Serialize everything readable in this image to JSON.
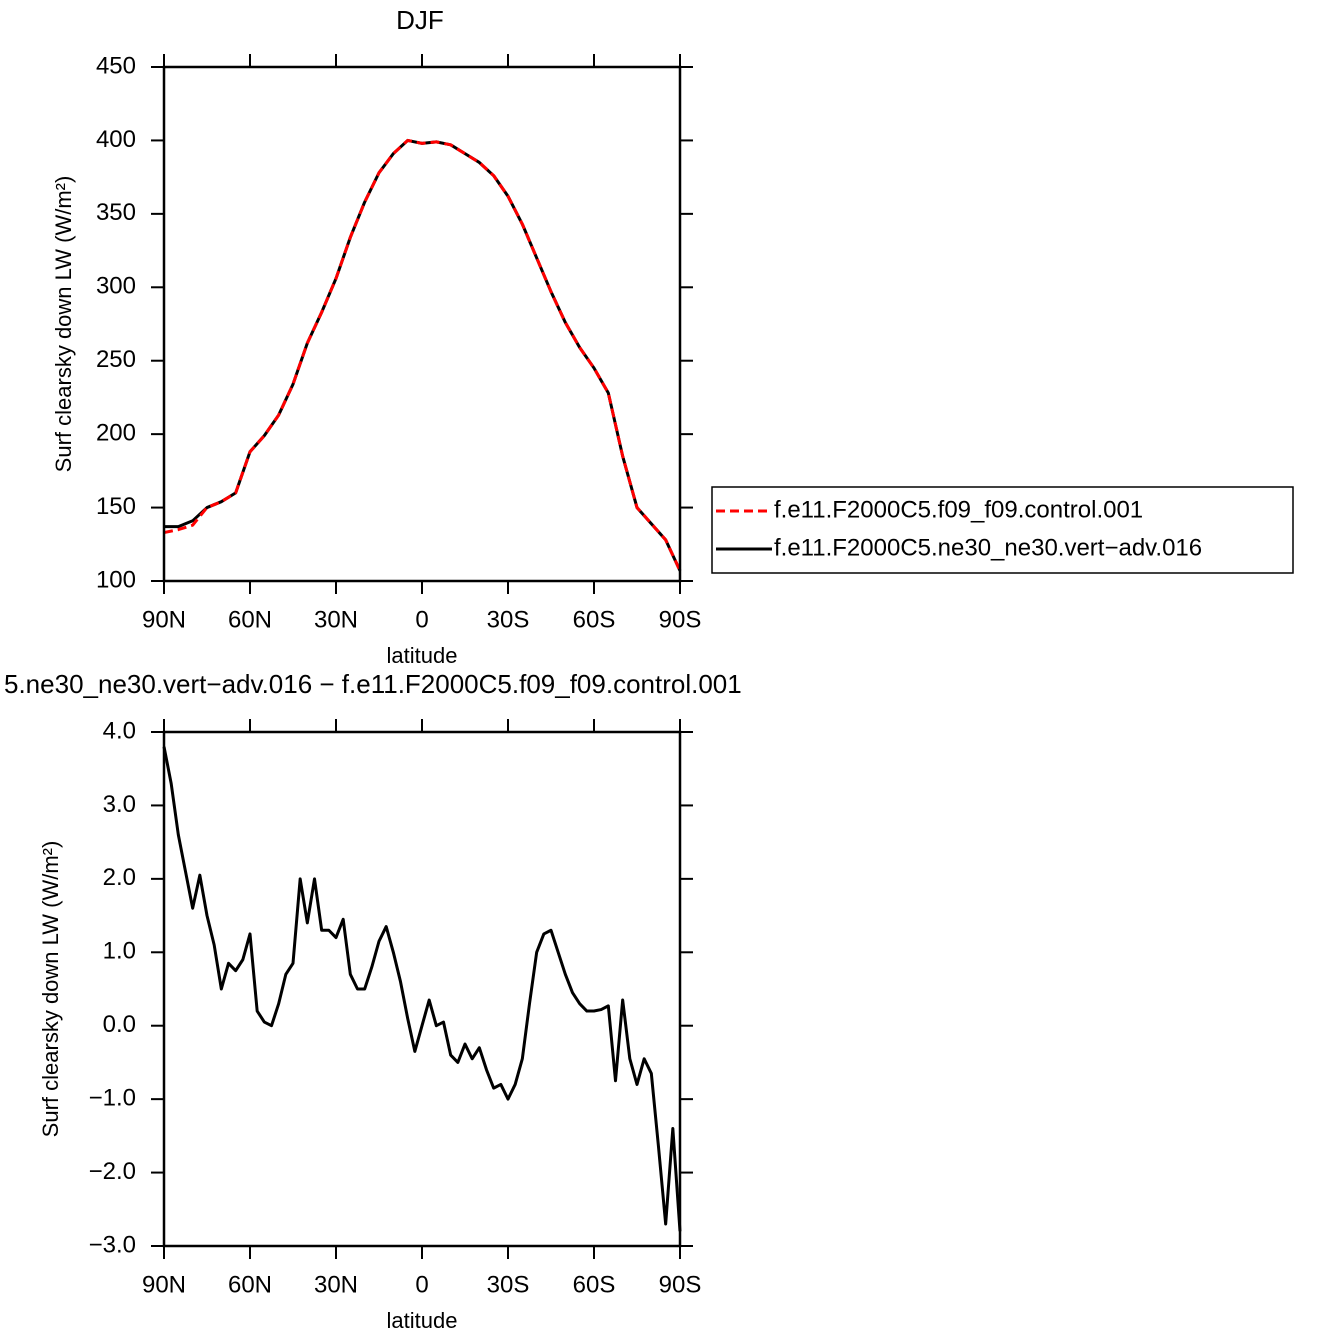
{
  "chart_data": [
    {
      "type": "line",
      "title": "DJF",
      "xlabel": "latitude",
      "ylabel": "Surf clearsky down LW (W/m²)",
      "x": [
        90,
        85,
        80,
        75,
        70,
        65,
        60,
        55,
        50,
        45,
        40,
        35,
        30,
        25,
        20,
        15,
        10,
        5,
        0,
        -5,
        -10,
        -15,
        -20,
        -25,
        -30,
        -35,
        -40,
        -45,
        -50,
        -55,
        -60,
        -65,
        -70,
        -75,
        -80,
        -85,
        -90
      ],
      "series": [
        {
          "name": "f.e11.F2000C5.f09_f09.control.001",
          "color": "#ff0000",
          "linestyle": "dashed",
          "values": [
            133,
            135,
            138,
            150,
            154,
            160,
            188,
            199,
            213,
            234,
            262,
            283,
            306,
            334,
            358,
            378,
            391,
            400,
            398,
            399,
            397,
            391,
            385,
            376,
            362,
            343,
            320,
            297,
            276,
            259,
            245,
            228,
            185,
            150,
            139,
            128,
            107
          ]
        },
        {
          "name": "f.e11.F2000C5.ne30_ne30.vert−adv.016",
          "color": "#000000",
          "linestyle": "solid",
          "values": [
            137,
            137,
            141,
            150,
            154,
            160,
            188,
            199,
            213,
            234,
            262,
            283,
            306,
            334,
            358,
            378,
            391,
            400,
            398,
            399,
            397,
            391,
            385,
            376,
            362,
            343,
            320,
            297,
            276,
            259,
            245,
            228,
            185,
            150,
            139,
            128,
            107
          ]
        }
      ],
      "xlim": [
        90,
        -90
      ],
      "xticks": [
        {
          "value": 90,
          "label": "90N"
        },
        {
          "value": 60,
          "label": "60N"
        },
        {
          "value": 30,
          "label": "30N"
        },
        0,
        {
          "value": -30,
          "label": "30S"
        },
        {
          "value": -60,
          "label": "60S"
        },
        {
          "value": -90,
          "label": "90S"
        }
      ],
      "ylim": [
        100,
        450
      ],
      "yticks": [
        100,
        150,
        200,
        250,
        300,
        350,
        400,
        450
      ],
      "legend": "right"
    },
    {
      "type": "line",
      "title": "5.ne30_ne30.vert−adv.016 − f.e11.F2000C5.f09_f09.control.001",
      "xlabel": "latitude",
      "ylabel": "Surf clearsky down LW (W/m²)",
      "x": [
        90,
        87.5,
        85,
        82.5,
        80,
        77.5,
        75,
        72.5,
        70,
        67.5,
        65,
        62.5,
        60,
        57.5,
        55,
        52.5,
        50,
        47.5,
        45,
        42.5,
        40,
        37.5,
        35,
        32.5,
        30,
        27.5,
        25,
        22.5,
        20,
        17.5,
        15,
        12.5,
        10,
        7.5,
        5,
        2.5,
        0,
        -2.5,
        -5,
        -7.5,
        -10,
        -12.5,
        -15,
        -17.5,
        -20,
        -22.5,
        -25,
        -27.5,
        -30,
        -32.5,
        -35,
        -37.5,
        -40,
        -42.5,
        -45,
        -47.5,
        -50,
        -52.5,
        -55,
        -57.5,
        -60,
        -62.5,
        -65,
        -67.5,
        -70,
        -72.5,
        -75,
        -77.5,
        -80,
        -82.5,
        -85,
        -87.5,
        -90
      ],
      "series": [
        {
          "color": "#000000",
          "linestyle": "solid",
          "values": [
            3.8,
            3.3,
            2.6,
            2.1,
            1.6,
            2.05,
            1.5,
            1.1,
            0.5,
            0.85,
            0.75,
            0.9,
            1.25,
            0.2,
            0.05,
            0.0,
            0.3,
            0.7,
            0.85,
            2.0,
            1.4,
            2.0,
            1.3,
            1.3,
            1.2,
            1.45,
            0.7,
            0.5,
            0.5,
            0.8,
            1.15,
            1.35,
            1.0,
            0.6,
            0.1,
            -0.35,
            0.0,
            0.35,
            0.0,
            0.05,
            -0.4,
            -0.5,
            -0.25,
            -0.45,
            -0.3,
            -0.6,
            -0.85,
            -0.8,
            -1.0,
            -0.8,
            -0.45,
            0.3,
            1.0,
            1.25,
            1.3,
            1.0,
            0.7,
            0.45,
            0.3,
            0.2,
            0.2,
            0.22,
            0.27,
            -0.75,
            0.35,
            -0.45,
            -0.8,
            -0.45,
            -0.65,
            -1.65,
            -2.7,
            -1.4,
            -2.8
          ]
        }
      ],
      "xlim": [
        90,
        -90
      ],
      "xticks": [
        {
          "value": 90,
          "label": "90N"
        },
        {
          "value": 60,
          "label": "60N"
        },
        {
          "value": 30,
          "label": "30N"
        },
        0,
        {
          "value": -30,
          "label": "30S"
        },
        {
          "value": -60,
          "label": "60S"
        },
        {
          "value": -90,
          "label": "90S"
        }
      ],
      "ylim": [
        -3,
        4
      ],
      "yticks": [
        {
          "value": -3,
          "label": "−3.0"
        },
        {
          "value": -2,
          "label": "−2.0"
        },
        {
          "value": -1,
          "label": "−1.0"
        },
        {
          "value": 0,
          "label": "0.0"
        },
        {
          "value": 1,
          "label": "1.0"
        },
        {
          "value": 2,
          "label": "2.0"
        },
        {
          "value": 3,
          "label": "3.0"
        },
        {
          "value": 4,
          "label": "4.0"
        }
      ]
    }
  ]
}
